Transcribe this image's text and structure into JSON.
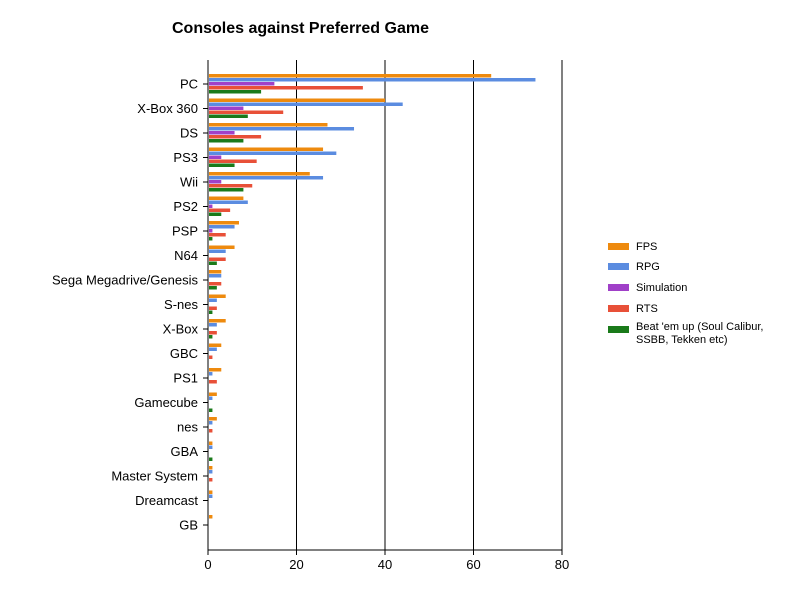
{
  "chart_data": {
    "type": "bar",
    "orientation": "horizontal",
    "title": "Consoles against Preferred Game",
    "xlabel": "",
    "ylabel": "",
    "xlim": [
      0,
      80
    ],
    "x_ticks": [
      "0",
      "20",
      "40",
      "60",
      "80"
    ],
    "grid": true,
    "legend_position": "right",
    "categories": [
      "PC",
      "X-Box 360",
      "DS",
      "PS3",
      "Wii",
      "PS2",
      "PSP",
      "N64",
      "Sega Megadrive/Genesis",
      "S-nes",
      "X-Box",
      "GBC",
      "PS1",
      "Gamecube",
      "nes",
      "GBA",
      "Master System",
      "Dreamcast",
      "GB"
    ],
    "series": [
      {
        "name": "FPS",
        "color": "#ee8a0e",
        "values": [
          64,
          40,
          27,
          26,
          23,
          8,
          7,
          6,
          3,
          4,
          4,
          3,
          3,
          2,
          2,
          1,
          1,
          1,
          1
        ]
      },
      {
        "name": "RPG",
        "color": "#5b8ce0",
        "values": [
          74,
          44,
          33,
          29,
          26,
          9,
          6,
          4,
          3,
          2,
          2,
          2,
          1,
          1,
          1,
          1,
          1,
          1,
          0
        ]
      },
      {
        "name": "Simulation",
        "color": "#a040c8",
        "values": [
          15,
          8,
          6,
          3,
          3,
          1,
          1,
          0,
          0,
          0,
          0,
          0,
          0,
          0,
          0,
          0,
          0,
          0,
          0
        ]
      },
      {
        "name": "RTS",
        "color": "#e85038",
        "values": [
          35,
          17,
          12,
          11,
          10,
          5,
          4,
          4,
          3,
          2,
          2,
          1,
          2,
          0,
          1,
          0,
          1,
          0,
          0
        ]
      },
      {
        "name": "Beat 'em up (Soul Calibur, SSBB, Tekken etc)",
        "color": "#1a7a1a",
        "values": [
          12,
          9,
          8,
          6,
          8,
          3,
          1,
          2,
          2,
          1,
          1,
          0,
          0,
          1,
          0,
          1,
          0,
          0,
          0
        ]
      }
    ]
  }
}
